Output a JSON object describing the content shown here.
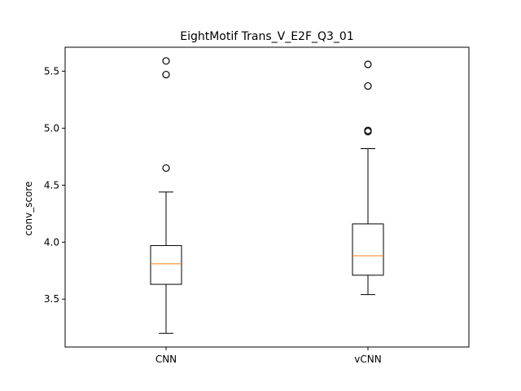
{
  "chart_data": {
    "type": "box",
    "title": "EightMotif Trans_V_E2F_Q3_01",
    "xlabel": "",
    "ylabel": "conv_score",
    "ylim": [
      3.08,
      5.71
    ],
    "yticks": [
      "3.5",
      "4.0",
      "4.5",
      "5.0",
      "5.5"
    ],
    "grid": false,
    "legend": "none",
    "categories": [
      "CNN",
      "vCNN"
    ],
    "boxes": [
      {
        "category": "CNN",
        "whisker_low": 3.2,
        "q1": 3.63,
        "median": 3.81,
        "q3": 3.97,
        "whisker_high": 4.44,
        "outliers": [
          4.65,
          5.47,
          5.59
        ]
      },
      {
        "category": "vCNN",
        "whisker_low": 3.54,
        "q1": 3.71,
        "median": 3.88,
        "q3": 4.16,
        "whisker_high": 4.82,
        "outliers": [
          4.97,
          4.98,
          5.37,
          5.56
        ]
      }
    ],
    "colors": {
      "box": "#000000",
      "median": "#ff7f0e",
      "outlier": "#000000"
    }
  }
}
